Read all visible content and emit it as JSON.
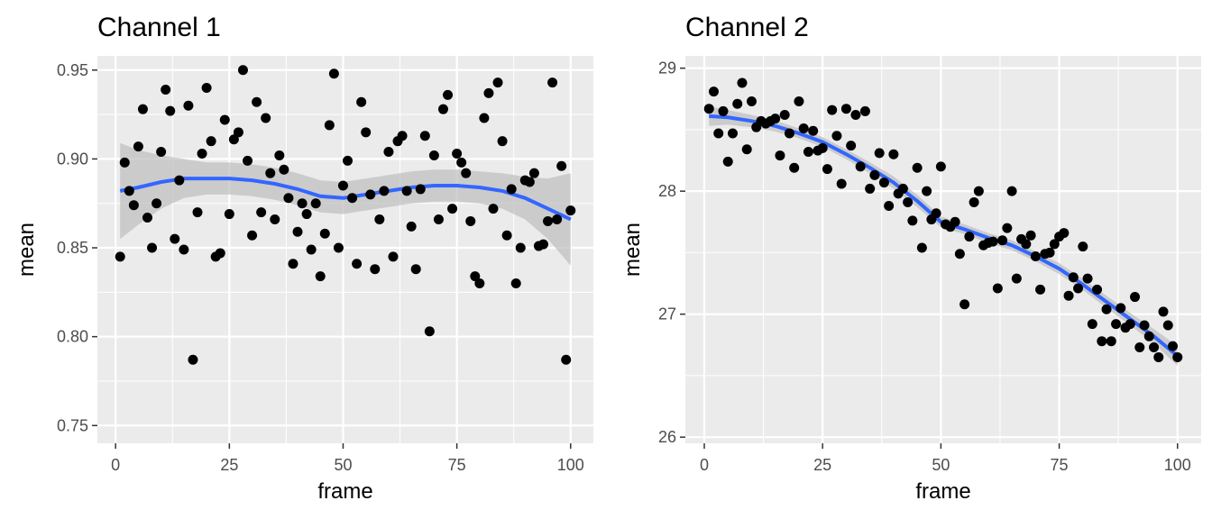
{
  "chart_data": [
    {
      "type": "scatter",
      "title": "Channel 1",
      "xlabel": "frame",
      "ylabel": "mean",
      "xlim": [
        -4,
        105
      ],
      "ylim": [
        0.74,
        0.958
      ],
      "xticks": [
        0,
        25,
        50,
        75,
        100
      ],
      "yticks": [
        0.75,
        0.8,
        0.85,
        0.9,
        0.95
      ],
      "xtick_labels": [
        "0",
        "25",
        "50",
        "75",
        "100"
      ],
      "ytick_labels": [
        "0.75",
        "0.80",
        "0.85",
        "0.90",
        "0.95"
      ],
      "grid": true,
      "points": {
        "x": [
          1,
          2,
          3,
          4,
          5,
          6,
          7,
          8,
          9,
          10,
          11,
          12,
          13,
          14,
          15,
          16,
          17,
          18,
          19,
          20,
          21,
          22,
          23,
          24,
          25,
          26,
          27,
          28,
          29,
          30,
          31,
          32,
          33,
          34,
          35,
          36,
          37,
          38,
          39,
          40,
          41,
          42,
          43,
          44,
          45,
          46,
          47,
          48,
          49,
          50,
          51,
          52,
          53,
          54,
          55,
          56,
          57,
          58,
          59,
          60,
          61,
          62,
          63,
          64,
          65,
          66,
          67,
          68,
          69,
          70,
          71,
          72,
          73,
          74,
          75,
          76,
          77,
          78,
          79,
          80,
          81,
          82,
          83,
          84,
          85,
          86,
          87,
          88,
          89,
          90,
          91,
          92,
          93,
          94,
          95,
          96,
          97,
          98,
          99,
          100
        ],
        "y": [
          0.845,
          0.898,
          0.882,
          0.874,
          0.907,
          0.928,
          0.867,
          0.85,
          0.875,
          0.904,
          0.939,
          0.927,
          0.855,
          0.888,
          0.849,
          0.93,
          0.787,
          0.87,
          0.903,
          0.94,
          0.91,
          0.845,
          0.847,
          0.922,
          0.869,
          0.911,
          0.915,
          0.95,
          0.899,
          0.857,
          0.932,
          0.87,
          0.923,
          0.892,
          0.866,
          0.902,
          0.894,
          0.878,
          0.841,
          0.859,
          0.875,
          0.869,
          0.849,
          0.875,
          0.834,
          0.858,
          0.919,
          0.948,
          0.85,
          0.885,
          0.899,
          0.878,
          0.841,
          0.932,
          0.915,
          0.88,
          0.838,
          0.866,
          0.882,
          0.904,
          0.845,
          0.91,
          0.913,
          0.882,
          0.862,
          0.838,
          0.883,
          0.913,
          0.803,
          0.902,
          0.866,
          0.928,
          0.936,
          0.872,
          0.903,
          0.898,
          0.892,
          0.865,
          0.834,
          0.83,
          0.923,
          0.937,
          0.872,
          0.943,
          0.91,
          0.857,
          0.883,
          0.83,
          0.85,
          0.888,
          0.887,
          0.892,
          0.851,
          0.852,
          0.865,
          0.943,
          0.866,
          0.896,
          0.787,
          0.871
        ]
      },
      "smooth": {
        "x": [
          1,
          5,
          10,
          15,
          20,
          25,
          30,
          35,
          40,
          45,
          50,
          55,
          60,
          65,
          70,
          75,
          80,
          85,
          90,
          95,
          100
        ],
        "y": [
          0.882,
          0.884,
          0.887,
          0.889,
          0.889,
          0.889,
          0.888,
          0.886,
          0.883,
          0.879,
          0.878,
          0.88,
          0.882,
          0.884,
          0.885,
          0.885,
          0.884,
          0.882,
          0.878,
          0.872,
          0.866
        ],
        "se_half": [
          0.027,
          0.021,
          0.015,
          0.011,
          0.009,
          0.009,
          0.009,
          0.009,
          0.009,
          0.009,
          0.009,
          0.009,
          0.009,
          0.009,
          0.009,
          0.009,
          0.009,
          0.01,
          0.012,
          0.017,
          0.026
        ]
      }
    },
    {
      "type": "scatter",
      "title": "Channel 2",
      "xlabel": "frame",
      "ylabel": "mean",
      "xlim": [
        -4,
        105
      ],
      "ylim": [
        25.95,
        29.1
      ],
      "xticks": [
        0,
        25,
        50,
        75,
        100
      ],
      "yticks": [
        26,
        27,
        28,
        29
      ],
      "xtick_labels": [
        "0",
        "25",
        "50",
        "75",
        "100"
      ],
      "ytick_labels": [
        "26",
        "27",
        "28",
        "29"
      ],
      "grid": true,
      "points": {
        "x": [
          1,
          2,
          3,
          4,
          5,
          6,
          7,
          8,
          9,
          10,
          11,
          12,
          13,
          14,
          15,
          16,
          17,
          18,
          19,
          20,
          21,
          22,
          23,
          24,
          25,
          26,
          27,
          28,
          29,
          30,
          31,
          32,
          33,
          34,
          35,
          36,
          37,
          38,
          39,
          40,
          41,
          42,
          43,
          44,
          45,
          46,
          47,
          48,
          49,
          50,
          51,
          52,
          53,
          54,
          55,
          56,
          57,
          58,
          59,
          60,
          61,
          62,
          63,
          64,
          65,
          66,
          67,
          68,
          69,
          70,
          71,
          72,
          73,
          74,
          75,
          76,
          77,
          78,
          79,
          80,
          81,
          82,
          83,
          84,
          85,
          86,
          87,
          88,
          89,
          90,
          91,
          92,
          93,
          94,
          95,
          96,
          97,
          98,
          99,
          100
        ],
        "y": [
          28.67,
          28.81,
          28.47,
          28.65,
          28.24,
          28.47,
          28.71,
          28.88,
          28.34,
          28.73,
          28.52,
          28.57,
          28.55,
          28.57,
          28.59,
          28.29,
          28.62,
          28.47,
          28.19,
          28.73,
          28.51,
          28.32,
          28.49,
          28.33,
          28.35,
          28.18,
          28.66,
          28.45,
          28.06,
          28.67,
          28.37,
          28.62,
          28.2,
          28.65,
          28.02,
          28.13,
          28.31,
          28.07,
          27.88,
          28.3,
          27.98,
          28.02,
          27.91,
          27.76,
          28.19,
          27.54,
          28.0,
          27.77,
          27.82,
          28.2,
          27.73,
          27.71,
          27.75,
          27.49,
          27.08,
          27.63,
          27.91,
          28.0,
          27.56,
          27.58,
          27.59,
          27.21,
          27.6,
          27.7,
          28.0,
          27.29,
          27.61,
          27.57,
          27.64,
          27.47,
          27.2,
          27.49,
          27.5,
          27.57,
          27.63,
          27.66,
          27.15,
          27.3,
          27.21,
          27.55,
          27.29,
          26.92,
          27.2,
          26.78,
          27.04,
          26.78,
          26.92,
          27.05,
          26.89,
          26.92,
          27.14,
          26.73,
          26.91,
          26.82,
          26.73,
          26.65,
          27.02,
          26.91,
          26.74,
          26.65
        ]
      },
      "smooth": {
        "x": [
          1,
          5,
          10,
          15,
          20,
          25,
          30,
          35,
          40,
          45,
          50,
          55,
          60,
          65,
          70,
          75,
          80,
          85,
          90,
          95,
          100
        ],
        "y": [
          28.61,
          28.6,
          28.57,
          28.53,
          28.47,
          28.4,
          28.3,
          28.19,
          28.07,
          27.92,
          27.75,
          27.69,
          27.62,
          27.56,
          27.47,
          27.37,
          27.24,
          27.1,
          26.96,
          26.82,
          26.66
        ],
        "se_half": [
          0.08,
          0.06,
          0.05,
          0.045,
          0.04,
          0.04,
          0.04,
          0.045,
          0.05,
          0.05,
          0.045,
          0.04,
          0.04,
          0.04,
          0.04,
          0.045,
          0.045,
          0.05,
          0.05,
          0.06,
          0.08
        ]
      }
    }
  ]
}
